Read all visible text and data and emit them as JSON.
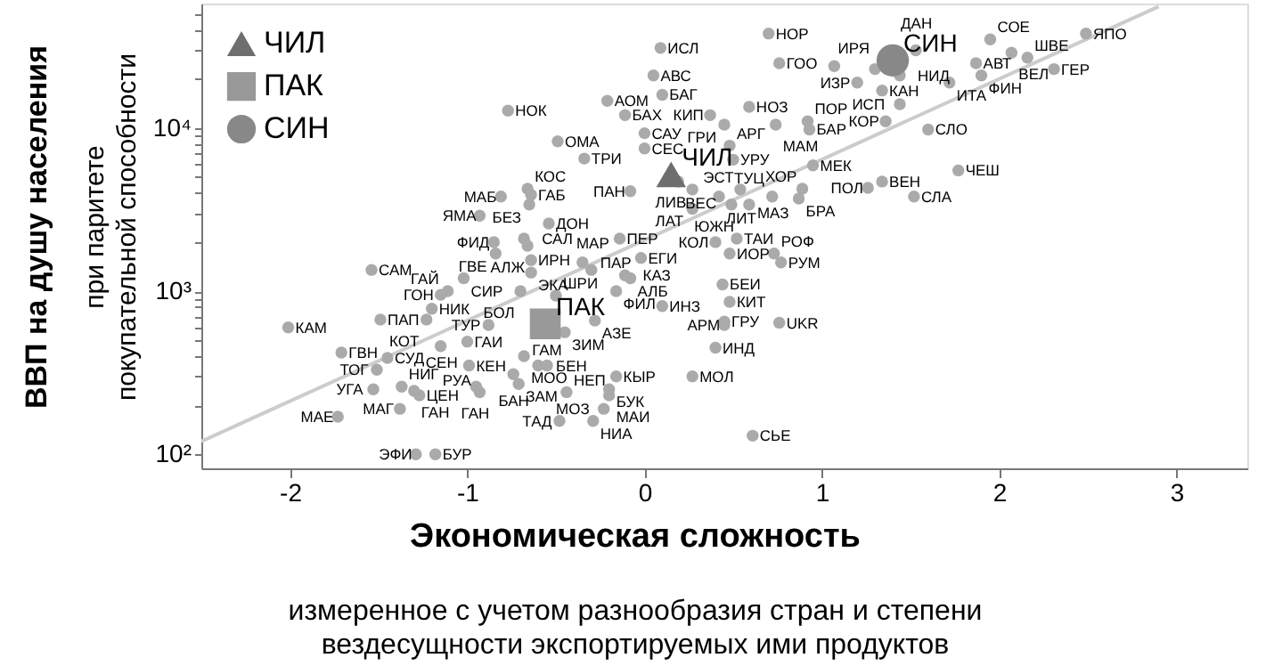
{
  "chart_data": {
    "type": "scatter",
    "xlabel": "Экономическая сложность",
    "ylabel": "ВВП на душу населения",
    "xlim": [
      -2.5,
      3.4
    ],
    "ylim": [
      82,
      58000
    ],
    "log": "y",
    "xticks": [
      -2,
      -1,
      0,
      1,
      2,
      3
    ],
    "yticks": [
      {
        "value": 100,
        "label": "10²"
      },
      {
        "value": 200,
        "label": null
      },
      {
        "value": 300,
        "label": null
      },
      {
        "value": 400,
        "label": null
      },
      {
        "value": 500,
        "label": null
      },
      {
        "value": 600,
        "label": null
      },
      {
        "value": 700,
        "label": null
      },
      {
        "value": 800,
        "label": null
      },
      {
        "value": 900,
        "label": null
      },
      {
        "value": 1000,
        "label": "10³"
      },
      {
        "value": 2000,
        "label": null
      },
      {
        "value": 3000,
        "label": null
      },
      {
        "value": 4000,
        "label": null
      },
      {
        "value": 5000,
        "label": null
      },
      {
        "value": 6000,
        "label": null
      },
      {
        "value": 7000,
        "label": null
      },
      {
        "value": 8000,
        "label": null
      },
      {
        "value": 9000,
        "label": null
      },
      {
        "value": 10000,
        "label": "10⁴"
      },
      {
        "value": 20000,
        "label": null
      },
      {
        "value": 30000,
        "label": null
      },
      {
        "value": 40000,
        "label": null
      },
      {
        "value": 50000,
        "label": null
      }
    ],
    "grid": false,
    "legend": "top left",
    "series": [
      {
        "type": "line",
        "color": "#cccccc",
        "marker": "none",
        "x": [
          -2.5,
          2.9
        ],
        "values": [
          120,
          55600
        ]
      },
      {
        "type": "scatter",
        "color": "#aaaaaa",
        "marker": "circle",
        "x": [
          -0.77,
          -0.49,
          -0.34,
          -0.21,
          -0.81,
          -0.66,
          -0.64,
          -0.65,
          -0.93,
          -0.54,
          -0.85,
          -0.68,
          -0.66,
          -0.84,
          -0.64,
          -0.64,
          -0.35,
          -1.54,
          -1.02,
          -1.15,
          -1.11,
          -1.2,
          -1.49,
          -1.23,
          -0.7,
          -0.5,
          -0.3,
          -0.16,
          -2.01,
          -0.88,
          -0.28,
          -0.45,
          -1.71,
          -1.45,
          -1.51,
          -1.53,
          -1.37,
          -1.3,
          -1.27,
          -1.38,
          -1.73,
          -1.15,
          -1.0,
          -0.99,
          -0.68,
          -0.74,
          -0.6,
          -0.71,
          -0.95,
          -0.93,
          -0.55,
          -0.44,
          -0.48,
          -0.29,
          -1.29,
          -1.18,
          -0.14,
          -0.02,
          -0.11,
          -0.08,
          0.1,
          0.4,
          0.52,
          0.48,
          0.73,
          0.77,
          0.44,
          0.48,
          0.45,
          0.45,
          0.76,
          0.4,
          0.27,
          -0.16,
          -0.2,
          -0.2,
          -0.23,
          0.61,
          0.7,
          0.09,
          0.76,
          1.2,
          1.34,
          1.53,
          1.3,
          1.44,
          1.44,
          1.36,
          1.6,
          1.72,
          1.87,
          1.9,
          1.95,
          2.07,
          2.16,
          2.31,
          2.49,
          1.77,
          1.34,
          1.26,
          1.52,
          0.95,
          0.89,
          0.87,
          0.72,
          0.54,
          0.42,
          0.27,
          0.27,
          0.49,
          0.59,
          -0.08,
          0.19,
          0.5,
          0.48,
          0.45,
          0.37,
          0.59,
          0.74,
          0.92,
          0.93,
          0.05,
          0.1,
          -0.11,
          0.0,
          0.0,
          1.07
        ],
        "values": [
          12800,
          8300,
          6500,
          14700,
          3800,
          4250,
          3900,
          3400,
          2900,
          2600,
          2000,
          2100,
          1900,
          1700,
          1550,
          1300,
          1500,
          1350,
          1200,
          950,
          1000,
          780,
          670,
          670,
          1000,
          940,
          1350,
          1000,
          600,
          620,
          660,
          560,
          420,
          390,
          330,
          250,
          260,
          245,
          230,
          190,
          170,
          460,
          490,
          350,
          400,
          310,
          350,
          270,
          260,
          240,
          350,
          240,
          160,
          160,
          100,
          100,
          2100,
          1600,
          1250,
          1200,
          810,
          2000,
          2100,
          1700,
          1700,
          1500,
          1100,
          860,
          650,
          620,
          640,
          450,
          300,
          300,
          250,
          230,
          190,
          130,
          38000,
          31000,
          25000,
          19000,
          17000,
          30000,
          23000,
          21000,
          14000,
          11000,
          9800,
          19000,
          25000,
          21000,
          35000,
          29000,
          27000,
          23000,
          38000,
          5500,
          4700,
          4300,
          3800,
          5900,
          4250,
          3700,
          3800,
          4200,
          3800,
          4200,
          3200,
          3400,
          3400,
          4100,
          4700,
          6400,
          7800,
          10500,
          12000,
          13500,
          10500,
          11000,
          9800,
          21000,
          16000,
          12000,
          9300,
          7500,
          24000
        ]
      },
      {
        "type": "scatter",
        "name": "ЧИЛ",
        "color": "#6e6e6e",
        "marker": "triangle",
        "x": [
          0.15
        ],
        "values": [
          5200
        ]
      },
      {
        "type": "scatter",
        "name": "ПАК",
        "color": "#999999",
        "marker": "square",
        "x": [
          -0.56
        ],
        "values": [
          630
        ]
      },
      {
        "type": "scatter",
        "name": "СИН",
        "color": "#888888",
        "marker": "circle",
        "x": [
          1.4
        ],
        "values": [
          26000
        ]
      }
    ],
    "annotations": [
      "при паритете покупательной способности",
      "измеренное с учетом разнообразия стран и степени вездесущности экспортируемых ими продуктов",
      {
        "text": "НОК",
        "x": -0.77,
        "y": 12800
      },
      {
        "text": "ОМА",
        "x": -0.49,
        "y": 8300
      },
      {
        "text": "ТРИ",
        "x": -0.34,
        "y": 6500
      },
      {
        "text": "АОМ",
        "x": -0.21,
        "y": 14700
      },
      {
        "text": "МАБ",
        "x": -0.81,
        "y": 3800
      },
      {
        "text": "КОС",
        "x": -0.66,
        "y": 4250
      },
      {
        "text": "ГАБ",
        "x": -0.64,
        "y": 3900
      },
      {
        "text": "БЕЗ",
        "x": -0.65,
        "y": 3400
      },
      {
        "text": "ЯМА",
        "x": -0.93,
        "y": 2900
      },
      {
        "text": "ДОН",
        "x": -0.54,
        "y": 2600
      },
      {
        "text": "ФИД",
        "x": -0.85,
        "y": 2000
      },
      {
        "text": "САЛ",
        "x": -0.68,
        "y": 2100
      },
      {
        "text": "АЛЖ",
        "x": -0.66,
        "y": 1900
      },
      {
        "text": "ГВЕ",
        "x": -0.84,
        "y": 1700
      },
      {
        "text": "ИРН",
        "x": -0.64,
        "y": 1550
      },
      {
        "text": "ЭКА",
        "x": -0.64,
        "y": 1300
      },
      {
        "text": "ПАР",
        "x": -0.35,
        "y": 1500
      },
      {
        "text": "САМ",
        "x": -1.54,
        "y": 1350
      },
      {
        "text": "СИР",
        "x": -1.02,
        "y": 1200
      },
      {
        "text": "ГОН",
        "x": -1.15,
        "y": 950
      },
      {
        "text": "ГАЙ",
        "x": -1.11,
        "y": 1000
      },
      {
        "text": "НИК",
        "x": -1.2,
        "y": 780
      },
      {
        "text": "ПАП",
        "x": -1.49,
        "y": 670
      },
      {
        "text": "КОТ",
        "x": -1.23,
        "y": 670
      },
      {
        "text": "БОЛ",
        "x": -0.7,
        "y": 1000
      },
      {
        "text": "ШРИ",
        "x": -0.5,
        "y": 940
      },
      {
        "text": "МАР",
        "x": -0.3,
        "y": 1350
      },
      {
        "text": "ФИЛ",
        "x": -0.16,
        "y": 1000
      },
      {
        "text": "КАМ",
        "x": -2.01,
        "y": 600
      },
      {
        "text": "ТУР",
        "x": -0.88,
        "y": 620
      },
      {
        "text": "АЗЕ",
        "x": -0.28,
        "y": 660
      },
      {
        "text": "ЗИМ",
        "x": -0.45,
        "y": 560
      },
      {
        "text": "ГВН",
        "x": -1.71,
        "y": 420
      },
      {
        "text": "СУД",
        "x": -1.45,
        "y": 390
      },
      {
        "text": "ТОГ",
        "x": -1.51,
        "y": 330
      },
      {
        "text": "УГА",
        "x": -1.53,
        "y": 250
      },
      {
        "text": "НИГ",
        "x": -1.37,
        "y": 260
      },
      {
        "text": "ГАН",
        "x": -1.3,
        "y": 245
      },
      {
        "text": "ЦЕН",
        "x": -1.27,
        "y": 230
      },
      {
        "text": "МАГ",
        "x": -1.38,
        "y": 190
      },
      {
        "text": "МАЕ",
        "x": -1.73,
        "y": 170
      },
      {
        "text": "СЕН",
        "x": -1.15,
        "y": 460
      },
      {
        "text": "ГАИ",
        "x": -1.0,
        "y": 490
      },
      {
        "text": "КЕН",
        "x": -0.99,
        "y": 350
      },
      {
        "text": "МОО",
        "x": -0.68,
        "y": 400
      },
      {
        "text": "БАН",
        "x": -0.74,
        "y": 310
      },
      {
        "text": "БЕН",
        "x": -0.6,
        "y": 350
      },
      {
        "text": "ЗАМ",
        "x": -0.71,
        "y": 270
      },
      {
        "text": "ГАН",
        "x": -0.95,
        "y": 260
      },
      {
        "text": "РУА",
        "x": -0.93,
        "y": 240
      },
      {
        "text": "ГАМ",
        "x": -0.55,
        "y": 350
      },
      {
        "text": "НЕП",
        "x": -0.44,
        "y": 240
      },
      {
        "text": "ТАД",
        "x": -0.48,
        "y": 160
      },
      {
        "text": "НИА",
        "x": -0.29,
        "y": 160
      },
      {
        "text": "ЭФИ",
        "x": -1.29,
        "y": 100
      },
      {
        "text": "БУР",
        "x": -1.18,
        "y": 100
      },
      {
        "text": "ПЕР",
        "x": -0.14,
        "y": 2100
      },
      {
        "text": "ЕГИ",
        "x": -0.02,
        "y": 1600
      },
      {
        "text": "КАЗ",
        "x": -0.11,
        "y": 1250
      },
      {
        "text": "АЛБ",
        "x": -0.08,
        "y": 1200
      },
      {
        "text": "ИНЗ",
        "x": 0.1,
        "y": 810
      },
      {
        "text": "КОЛ",
        "x": 0.4,
        "y": 2000
      },
      {
        "text": "ТАИ",
        "x": 0.52,
        "y": 2100
      },
      {
        "text": "ИОР",
        "x": 0.48,
        "y": 1700
      },
      {
        "text": "РОФ",
        "x": 0.73,
        "y": 1700
      },
      {
        "text": "РУМ",
        "x": 0.77,
        "y": 1500
      },
      {
        "text": "БЕИ",
        "x": 0.44,
        "y": 1100
      },
      {
        "text": "КИТ",
        "x": 0.48,
        "y": 860
      },
      {
        "text": "ГРУ",
        "x": 0.45,
        "y": 650
      },
      {
        "text": "АРМ",
        "x": 0.45,
        "y": 620
      },
      {
        "text": "UKR",
        "x": 0.76,
        "y": 640
      },
      {
        "text": "ИНД",
        "x": 0.4,
        "y": 450
      },
      {
        "text": "МОЛ",
        "x": 0.27,
        "y": 300
      },
      {
        "text": "КЫР",
        "x": -0.16,
        "y": 300
      },
      {
        "text": "БУК",
        "x": -0.2,
        "y": 250
      },
      {
        "text": "МАИ",
        "x": -0.2,
        "y": 230
      },
      {
        "text": "МОЗ",
        "x": -0.23,
        "y": 190
      },
      {
        "text": "СЬЕ",
        "x": 0.61,
        "y": 130
      },
      {
        "text": "НОР",
        "x": 0.7,
        "y": 38000
      },
      {
        "text": "ИСЛ",
        "x": 0.09,
        "y": 31000
      },
      {
        "text": "ГОО",
        "x": 0.76,
        "y": 25000
      },
      {
        "text": "ИЗР",
        "x": 1.2,
        "y": 19000
      },
      {
        "text": "КАН",
        "x": 1.34,
        "y": 17000
      },
      {
        "text": "ДАН",
        "x": 1.53,
        "y": 30000
      },
      {
        "text": "ИРЯ",
        "x": 1.3,
        "y": 23000
      },
      {
        "text": "НИД",
        "x": 1.44,
        "y": 21000
      },
      {
        "text": "ИСП",
        "x": 1.44,
        "y": 14000
      },
      {
        "text": "КОР",
        "x": 1.36,
        "y": 11000
      },
      {
        "text": "СЛО",
        "x": 1.6,
        "y": 9800
      },
      {
        "text": "ИТА",
        "x": 1.72,
        "y": 19000
      },
      {
        "text": "АВТ",
        "x": 1.87,
        "y": 25000
      },
      {
        "text": "ФИН",
        "x": 1.9,
        "y": 21000
      },
      {
        "text": "СОЕ",
        "x": 1.95,
        "y": 35000
      },
      {
        "text": "ВЕЛ",
        "x": 2.07,
        "y": 29000
      },
      {
        "text": "ШВЕ",
        "x": 2.16,
        "y": 27000
      },
      {
        "text": "ГЕР",
        "x": 2.31,
        "y": 23000
      },
      {
        "text": "ЯПО",
        "x": 2.49,
        "y": 38000
      },
      {
        "text": "ЧЕШ",
        "x": 1.77,
        "y": 5500
      },
      {
        "text": "ВЕН",
        "x": 1.34,
        "y": 4700
      },
      {
        "text": "ПОЛ",
        "x": 1.26,
        "y": 4300
      },
      {
        "text": "СЛА",
        "x": 1.52,
        "y": 3800
      },
      {
        "text": "МЕК",
        "x": 0.95,
        "y": 5900
      },
      {
        "text": "ХОР",
        "x": 0.89,
        "y": 4250
      },
      {
        "text": "БРА",
        "x": 0.87,
        "y": 3700
      },
      {
        "text": "МАЗ",
        "x": 0.72,
        "y": 3800
      },
      {
        "text": "ЭСТ",
        "x": 0.54,
        "y": 4200
      },
      {
        "text": "ЛИТ",
        "x": 0.42,
        "y": 3800
      },
      {
        "text": "ЛИВ",
        "x": 0.27,
        "y": 4200
      },
      {
        "text": "ЛАТ",
        "x": 0.27,
        "y": 3200
      },
      {
        "text": "ЮЖН",
        "x": 0.49,
        "y": 3400
      },
      {
        "text": "ТУЦ",
        "x": 0.59,
        "y": 3400
      },
      {
        "text": "ПАН",
        "x": -0.08,
        "y": 4100
      },
      {
        "text": "ВЕС",
        "x": 0.19,
        "y": 4700
      },
      {
        "text": "УРУ",
        "x": 0.5,
        "y": 6400
      },
      {
        "text": "АРГ",
        "x": 0.48,
        "y": 7800
      },
      {
        "text": "ГРИ",
        "x": 0.45,
        "y": 10500
      },
      {
        "text": "КИП",
        "x": 0.37,
        "y": 12000
      },
      {
        "text": "НОЗ",
        "x": 0.59,
        "y": 13500
      },
      {
        "text": "МАМ",
        "x": 0.74,
        "y": 10500
      },
      {
        "text": "ПОР",
        "x": 0.92,
        "y": 11000
      },
      {
        "text": "БАР",
        "x": 0.93,
        "y": 9800
      },
      {
        "text": "АВС",
        "x": 0.05,
        "y": 21000
      },
      {
        "text": "БАГ",
        "x": 0.1,
        "y": 16000
      },
      {
        "text": "БАХ",
        "x": -0.11,
        "y": 12000
      },
      {
        "text": "САУ",
        "x": 0.0,
        "y": 9300
      },
      {
        "text": "СЕС",
        "x": 0.0,
        "y": 7500
      }
    ]
  }
}
